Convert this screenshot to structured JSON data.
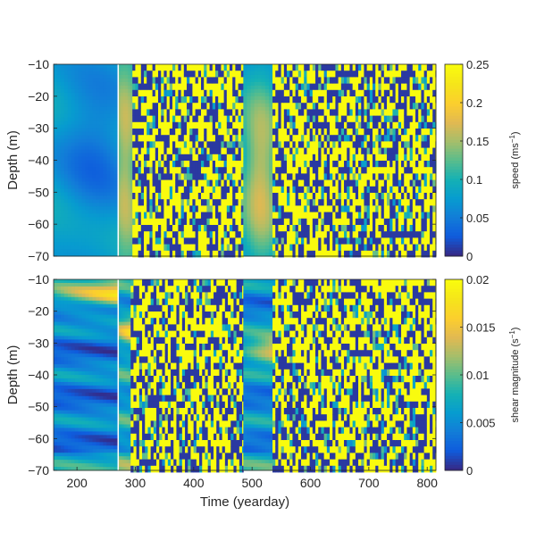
{
  "chart_data": [
    {
      "type": "heatmap",
      "id": "speed",
      "xlabel": "",
      "ylabel": "Depth (m)",
      "xlim": [
        160,
        815
      ],
      "ylim": [
        -70,
        -10
      ],
      "x_ticks": [],
      "y_ticks": [
        -10,
        -20,
        -30,
        -40,
        -50,
        -60,
        -70
      ],
      "y_tick_labels": [
        "−10",
        "−20",
        "−30",
        "−40",
        "−50",
        "−60",
        "−70"
      ],
      "colorbar": {
        "label_prefix": "speed (ms",
        "label_sup": "−1",
        "label_suffix": ")",
        "range": [
          0,
          0.25
        ],
        "ticks": [
          0,
          0.05,
          0.1,
          0.15,
          0.2,
          0.25
        ],
        "tick_labels": [
          "0",
          "0.05",
          "0.1",
          "0.15",
          "0.2",
          "0.25"
        ]
      },
      "colormap": "parula",
      "segments": [
        {
          "x0": 160,
          "x1": 269,
          "kind": "smooth",
          "base": 0.09,
          "center_day": 230,
          "center_depth": -37,
          "center_amp": -0.05,
          "depth_gradient": 0.0
        },
        {
          "x0": 271,
          "x1": 295,
          "kind": "smooth",
          "base": 0.12,
          "center_day": 283,
          "center_depth": -40,
          "center_amp": 0.04,
          "depth_gradient": 0.0
        },
        {
          "x0": 295,
          "x1": 485,
          "kind": "noise"
        },
        {
          "x0": 485,
          "x1": 535,
          "kind": "smooth",
          "base": 0.08,
          "center_day": 515,
          "center_depth": -45,
          "center_amp": 0.09,
          "depth_gradient": 0.0
        },
        {
          "x0": 535,
          "x1": 815,
          "kind": "noise"
        }
      ]
    },
    {
      "type": "heatmap",
      "id": "shear",
      "xlabel": "Time (yearday)",
      "ylabel": "Depth (m)",
      "xlim": [
        160,
        815
      ],
      "ylim": [
        -70,
        -10
      ],
      "x_ticks": [
        200,
        300,
        400,
        500,
        600,
        700,
        800
      ],
      "x_tick_labels": [
        "200",
        "300",
        "400",
        "500",
        "600",
        "700",
        "800"
      ],
      "y_ticks": [
        -10,
        -20,
        -30,
        -40,
        -50,
        -60,
        -70
      ],
      "y_tick_labels": [
        "−10",
        "−20",
        "−30",
        "−40",
        "−50",
        "−60",
        "−70"
      ],
      "colorbar": {
        "label_prefix": "shear magnitude (s",
        "label_sup": "−1",
        "label_suffix": ")",
        "range": [
          0,
          0.02
        ],
        "ticks": [
          0,
          0.005,
          0.01,
          0.015,
          0.02
        ],
        "tick_labels": [
          "0",
          "0.005",
          "0.01",
          "0.015",
          "0.02"
        ]
      },
      "colormap": "parula",
      "segments": [
        {
          "x0": 160,
          "x1": 269,
          "kind": "bands",
          "base": 0.004,
          "hot_depth": -15,
          "hot_amp": 0.014
        },
        {
          "x0": 271,
          "x1": 292,
          "kind": "bands",
          "base": 0.007,
          "hot_depth": -27,
          "hot_amp": 0.008
        },
        {
          "x0": 292,
          "x1": 485,
          "kind": "noise"
        },
        {
          "x0": 485,
          "x1": 535,
          "kind": "bands",
          "base": 0.005,
          "hot_depth": -32,
          "hot_amp": 0.012
        },
        {
          "x0": 535,
          "x1": 815,
          "kind": "noise"
        }
      ]
    }
  ]
}
